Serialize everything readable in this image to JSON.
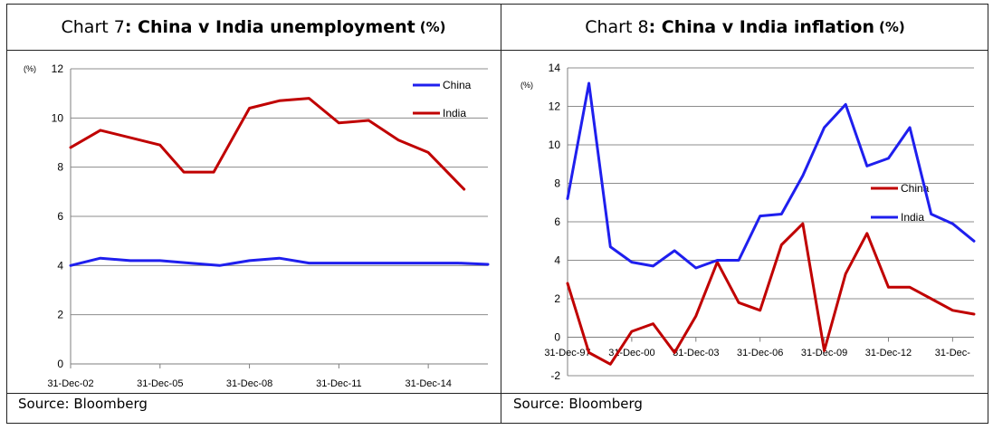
{
  "chart_data": [
    {
      "type": "line",
      "title_prefix": "Chart 7",
      "title_main": ": China v India unemployment",
      "title_unit": "(%)",
      "unit_label": "(%)",
      "source": "Source: Bloomberg",
      "ylim": [
        0,
        12
      ],
      "yticks": [
        0,
        2,
        4,
        6,
        8,
        10,
        12
      ],
      "xlim": [
        2002.0,
        2016.0
      ],
      "xticks": [
        {
          "x": 2002.0,
          "label": "31-Dec-02"
        },
        {
          "x": 2005.0,
          "label": "31-Dec-05"
        },
        {
          "x": 2008.0,
          "label": "31-Dec-08"
        },
        {
          "x": 2011.0,
          "label": "31-Dec-11"
        },
        {
          "x": 2014.0,
          "label": "31-Dec-14"
        }
      ],
      "grid": true,
      "legend_position": "top-right",
      "series": [
        {
          "name": "China",
          "color": "#1f1fee",
          "x": [
            2002,
            2003,
            2004,
            2005,
            2006,
            2007,
            2008,
            2009,
            2010,
            2011,
            2012,
            2013,
            2014,
            2015,
            2016
          ],
          "values": [
            4.0,
            4.3,
            4.2,
            4.2,
            4.1,
            4.0,
            4.2,
            4.3,
            4.1,
            4.1,
            4.1,
            4.1,
            4.1,
            4.1,
            4.05
          ]
        },
        {
          "name": "India",
          "color": "#c00000",
          "x": [
            2002,
            2003,
            2005,
            2005.8,
            2006.8,
            2008,
            2009,
            2010,
            2011,
            2012,
            2013,
            2014,
            2015.2
          ],
          "values": [
            8.8,
            9.5,
            8.9,
            7.8,
            7.8,
            10.4,
            10.7,
            10.8,
            9.8,
            9.9,
            9.1,
            8.6,
            7.1
          ]
        }
      ]
    },
    {
      "type": "line",
      "title_prefix": "Chart 8",
      "title_main": ": China v India inflation",
      "title_unit": "(%)",
      "unit_label": "(%)",
      "source": "Source: Bloomberg",
      "ylim": [
        -2,
        14
      ],
      "yticks": [
        -2,
        0,
        2,
        4,
        6,
        8,
        10,
        12,
        14
      ],
      "xlim": [
        1997.0,
        2016.0
      ],
      "xticks": [
        {
          "x": 1997.0,
          "label": "31-Dec-97"
        },
        {
          "x": 2000.0,
          "label": "31-Dec-00"
        },
        {
          "x": 2003.0,
          "label": "31-Dec-03"
        },
        {
          "x": 2006.0,
          "label": "31-Dec-06"
        },
        {
          "x": 2009.0,
          "label": "31-Dec-09"
        },
        {
          "x": 2012.0,
          "label": "31-Dec-12"
        },
        {
          "x": 2015.0,
          "label": "31-Dec-"
        }
      ],
      "grid": true,
      "legend_position": "middle-right",
      "series": [
        {
          "name": "China",
          "color": "#c00000",
          "x": [
            1997,
            1998,
            1999,
            2000,
            2001,
            2002,
            2003,
            2004,
            2005,
            2006,
            2007,
            2008,
            2009,
            2010,
            2011,
            2012,
            2013,
            2014,
            2015,
            2016
          ],
          "values": [
            2.8,
            -0.8,
            -1.4,
            0.3,
            0.7,
            -0.8,
            1.1,
            3.9,
            1.8,
            1.4,
            4.8,
            5.9,
            -0.7,
            3.3,
            5.4,
            2.6,
            2.6,
            2.0,
            1.4,
            1.2
          ]
        },
        {
          "name": "India",
          "color": "#1f1fee",
          "x": [
            1997,
            1998,
            1999,
            2000,
            2001,
            2002,
            2003,
            2004,
            2005,
            2006,
            2007,
            2008,
            2009,
            2010,
            2011,
            2012,
            2013,
            2014,
            2015,
            2016
          ],
          "values": [
            7.2,
            13.2,
            4.7,
            3.9,
            3.7,
            4.5,
            3.6,
            4.0,
            4.0,
            6.3,
            6.4,
            8.4,
            10.9,
            12.1,
            8.9,
            9.3,
            10.9,
            6.4,
            5.9,
            5.0
          ]
        }
      ]
    }
  ]
}
